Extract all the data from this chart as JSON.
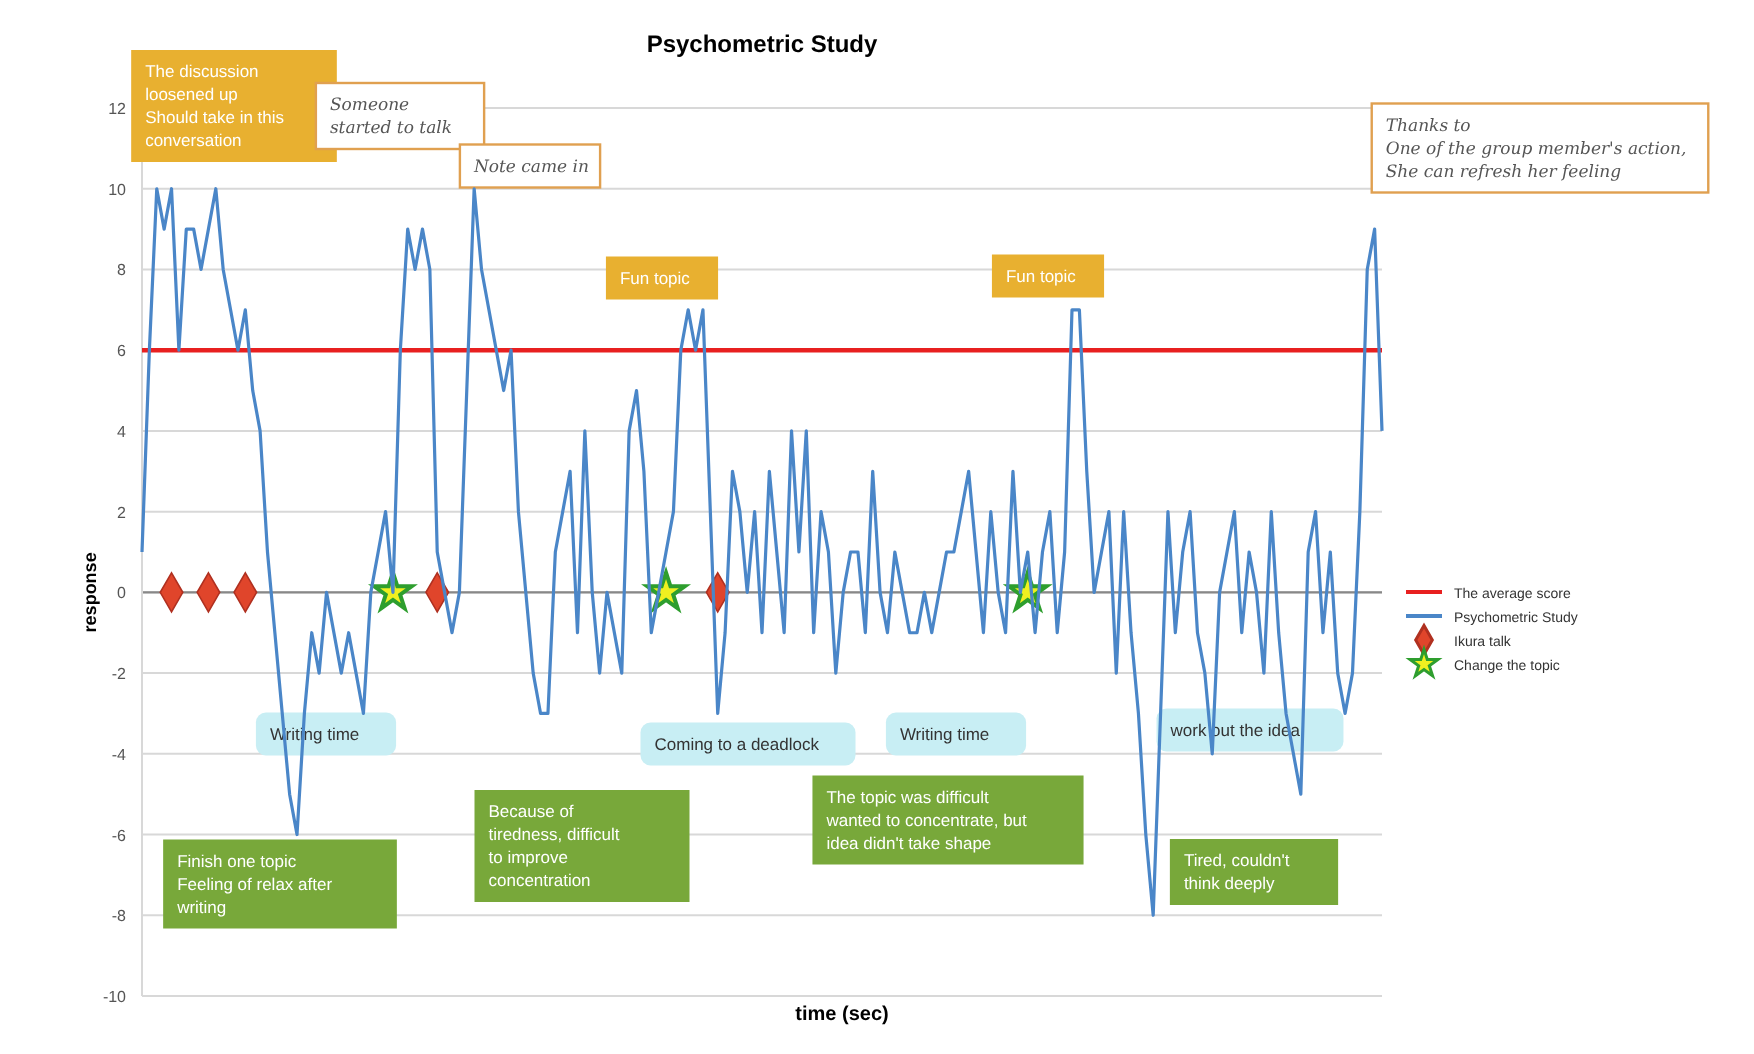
{
  "chart_data": {
    "type": "line",
    "title": "Psychometric Study",
    "xlabel": "time (sec)",
    "ylabel": "response",
    "ylim": [
      -10,
      12
    ],
    "yticks": [
      -10,
      -8,
      -6,
      -4,
      -2,
      0,
      2,
      4,
      6,
      8,
      10,
      12
    ],
    "tick_labels": "y",
    "grid": "y",
    "legend": "right",
    "categories": [
      null,
      null,
      null,
      null,
      null,
      null,
      null,
      null,
      null,
      null,
      null,
      null,
      null,
      null,
      null,
      null,
      null,
      null,
      null,
      null,
      null,
      null,
      null,
      null,
      null,
      null,
      null,
      null,
      null,
      null,
      null,
      null,
      null,
      null,
      null,
      null,
      null,
      null,
      null,
      null,
      null,
      null,
      null,
      null,
      null,
      null,
      null,
      null,
      null,
      null,
      null,
      null,
      null,
      null,
      null,
      null,
      null,
      null,
      null,
      null,
      null,
      null,
      null,
      null,
      null,
      null,
      null,
      null,
      null,
      null,
      null,
      null,
      null,
      null,
      null,
      null,
      null,
      null,
      null,
      null,
      null,
      null,
      null,
      null,
      null,
      null,
      null,
      null,
      null,
      null,
      null,
      null,
      null,
      null,
      null,
      null,
      null,
      null,
      null,
      null,
      null,
      null,
      null,
      null,
      null,
      null,
      null,
      null,
      null,
      null,
      null,
      null,
      null,
      null,
      null,
      null,
      null,
      null,
      null,
      null,
      null,
      null,
      null,
      null,
      null,
      null,
      null,
      null,
      null,
      null,
      null,
      null,
      null,
      null,
      null,
      null,
      null,
      null,
      null,
      null,
      null,
      null,
      null,
      null,
      null,
      null,
      null,
      null,
      null,
      null,
      null,
      null,
      null,
      null,
      null,
      null,
      null,
      null,
      null,
      null,
      null,
      null,
      null,
      null,
      null,
      null,
      null,
      null,
      null
    ],
    "series": [
      {
        "name": "Psychometric Study",
        "color": "#4a86c8",
        "marker": "none",
        "line_style": "solid",
        "values": [
          1,
          6,
          10,
          9,
          10,
          6,
          9,
          9,
          8,
          9,
          10,
          8,
          7,
          6,
          7,
          5,
          4,
          1,
          -1,
          -3,
          -5,
          -6,
          -3,
          -1,
          -2,
          0,
          -1,
          -2,
          -1,
          -2,
          -3,
          0,
          1,
          2,
          0,
          6,
          9,
          8,
          9,
          8,
          1,
          0,
          -1,
          0,
          5,
          10,
          8,
          7,
          6,
          5,
          6,
          2,
          0,
          -2,
          -3,
          -3,
          1,
          2,
          3,
          -1,
          4,
          0,
          -2,
          0,
          -1,
          -2,
          4,
          5,
          3,
          -1,
          0,
          1,
          2,
          6,
          7,
          6,
          7,
          2,
          -3,
          -1,
          3,
          2,
          0,
          2,
          -1,
          3,
          1,
          -1,
          4,
          1,
          4,
          -1,
          2,
          1,
          -2,
          0,
          1,
          1,
          -1,
          3,
          0,
          -1,
          1,
          0,
          -1,
          -1,
          0,
          -1,
          0,
          1,
          1,
          2,
          3,
          1,
          -1,
          2,
          0,
          -1,
          3,
          0,
          1,
          -1,
          1,
          2,
          -1,
          1,
          7,
          7,
          3,
          0,
          1,
          2,
          -2,
          2,
          -1,
          -3,
          -6,
          -8,
          -3,
          2,
          -1,
          1,
          2,
          -1,
          -2,
          -4,
          0,
          1,
          2,
          -1,
          1,
          0,
          -2,
          2,
          -1,
          -3,
          -4,
          -5,
          1,
          2,
          -1,
          1,
          -2,
          -3,
          -2,
          2,
          8,
          9,
          4
        ]
      },
      {
        "name": "Ikura talk",
        "type": "scatter",
        "color": "#e0452b",
        "marker": "diamond",
        "values": [
          null,
          null,
          null,
          null,
          0,
          null,
          null,
          null,
          null,
          0,
          null,
          null,
          null,
          null,
          0,
          null,
          null,
          null,
          null,
          null,
          null,
          null,
          null,
          null,
          null,
          null,
          null,
          null,
          null,
          null,
          null,
          null,
          null,
          null,
          null,
          null,
          null,
          null,
          null,
          null,
          0,
          null,
          null,
          null,
          null,
          null,
          null,
          null,
          null,
          null,
          null,
          null,
          null,
          null,
          null,
          null,
          null,
          null,
          null,
          null,
          null,
          null,
          null,
          null,
          null,
          null,
          null,
          null,
          null,
          null,
          null,
          null,
          null,
          null,
          null,
          null,
          null,
          null,
          0,
          null,
          null,
          null,
          null,
          null,
          null,
          null,
          null,
          null,
          null,
          null,
          null,
          null,
          null,
          null,
          null,
          null,
          null,
          null,
          null,
          null,
          null,
          null,
          null,
          null,
          null,
          null,
          null,
          null,
          null,
          null,
          null,
          null,
          null,
          null,
          null,
          null,
          null,
          null,
          null,
          null,
          null,
          null,
          null,
          null,
          null,
          null,
          null,
          null,
          null,
          null,
          null,
          null,
          null,
          null,
          null,
          null,
          null,
          null,
          null,
          null,
          null,
          null,
          null,
          null,
          null,
          null,
          null,
          null,
          null,
          null,
          null,
          null,
          null,
          null,
          null,
          null,
          null,
          null,
          null,
          null,
          null,
          null,
          null,
          null,
          null,
          null,
          null,
          null,
          null
        ]
      },
      {
        "name": "Change the topic",
        "type": "scatter",
        "color": "#2e9e2e",
        "marker": "star",
        "values": [
          null,
          null,
          null,
          null,
          null,
          null,
          null,
          null,
          null,
          null,
          null,
          null,
          null,
          null,
          null,
          null,
          null,
          null,
          null,
          null,
          null,
          null,
          null,
          null,
          null,
          null,
          null,
          null,
          null,
          null,
          null,
          null,
          null,
          null,
          0,
          null,
          null,
          null,
          null,
          null,
          null,
          null,
          null,
          null,
          null,
          null,
          null,
          null,
          null,
          null,
          null,
          null,
          null,
          null,
          null,
          null,
          null,
          null,
          null,
          null,
          null,
          null,
          null,
          null,
          null,
          null,
          null,
          null,
          null,
          null,
          null,
          0,
          null,
          null,
          null,
          null,
          null,
          null,
          null,
          null,
          null,
          null,
          null,
          null,
          null,
          null,
          null,
          null,
          null,
          null,
          null,
          null,
          null,
          null,
          null,
          null,
          null,
          null,
          null,
          null,
          null,
          null,
          null,
          null,
          null,
          null,
          null,
          null,
          null,
          null,
          null,
          null,
          null,
          null,
          null,
          null,
          null,
          null,
          null,
          null,
          0,
          null,
          null,
          null,
          null,
          null,
          null,
          null,
          null,
          null,
          null,
          null,
          null,
          null,
          null,
          null,
          null,
          null,
          null,
          null,
          null,
          null,
          null,
          null,
          null,
          null,
          null,
          null,
          null,
          null,
          null,
          null,
          null,
          null,
          null,
          null,
          null,
          null,
          null,
          null,
          null,
          null,
          null,
          null,
          null,
          null,
          null,
          null,
          null
        ]
      }
    ],
    "ref_lines": [
      {
        "axis": "y",
        "value": 6,
        "label": "The average score",
        "color": "#e82020",
        "line_style": "solid"
      }
    ],
    "annotations": [
      "The discussion\nloosened up\nShould take in this\nconversation",
      "Someone\nstarted to talk",
      "Note came in",
      "Fun topic",
      "Fun topic",
      "Thanks to\nOne of the group member's action,\nShe can refresh her feeling",
      "Writing time",
      "Coming to a deadlock",
      "Writing time",
      "work out the idea",
      "Finish one topic\nFeeling of relax after\nwriting",
      "Because of\ntiredness, difficult\nto improve\nconcentration",
      "The topic was difficult\nwanted to concentrate, but\nidea didn't take shape",
      "Tired, couldn't\nthink deeply"
    ]
  }
}
